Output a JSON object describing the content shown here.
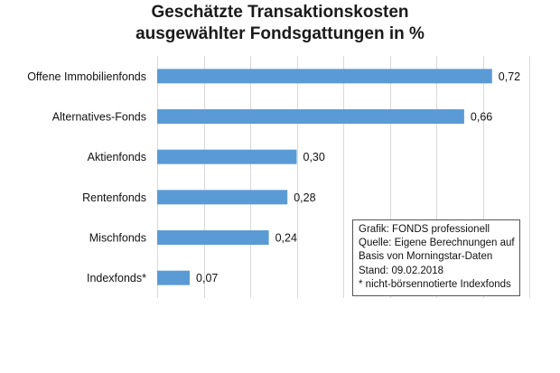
{
  "title_lines": [
    "Geschätzte Transaktionskosten",
    "ausgewählter Fondsgattungen in %"
  ],
  "note_lines": [
    "Grafik: FONDS professionell",
    "Quelle: Eigene Berechnungen auf",
    "Basis von Morningstar-Daten",
    "Stand: 09.02.2018",
    "* nicht-börsennotierte Indexfonds"
  ],
  "chart_data": {
    "type": "bar",
    "orientation": "horizontal",
    "categories": [
      "Offene Immobilienfonds",
      "Alternatives-Fonds",
      "Aktienfonds",
      "Rentenfonds",
      "Mischfonds",
      "Indexfonds*"
    ],
    "values": [
      0.72,
      0.66,
      0.3,
      0.28,
      0.24,
      0.07
    ],
    "value_labels": [
      "0,72",
      "0,66",
      "0,30",
      "0,28",
      "0,24",
      "0,07"
    ],
    "xlim": [
      0,
      0.8
    ],
    "grid": true,
    "bar_color": "#5b9bd5",
    "grid_color": "#d9d9d9"
  }
}
